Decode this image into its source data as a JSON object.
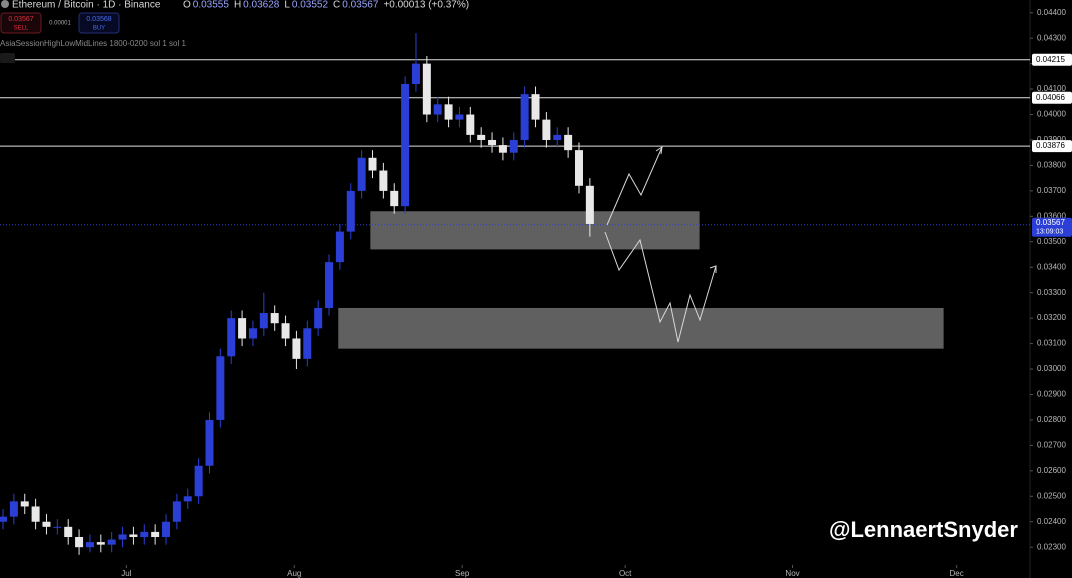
{
  "chart_data": {
    "type": "candlestick",
    "title": "Ethereum / Bitcoin · 1D · Binance",
    "readout": [
      {
        "label": "O",
        "value": "0.03555"
      },
      {
        "label": "H",
        "value": "0.03628"
      },
      {
        "label": "L",
        "value": "0.03552"
      },
      {
        "label": "C",
        "value": "0.03567"
      },
      {
        "label": "+0.00013 (+0.37%)"
      }
    ],
    "sell": {
      "price": "0.03567",
      "label": "SELL"
    },
    "spread": "0.00001",
    "buy": {
      "price": "0.03568",
      "label": "BUY"
    },
    "indicator": "AsiaSessionHighLowMidLines 1800-0200 sol 1 sol 1",
    "watermark": "@LennaertSnyder",
    "up_color": "#2b3fd6",
    "down_color": "#e8e8e8",
    "x": [
      0,
      2,
      4,
      6,
      8,
      10,
      12,
      14,
      16,
      18,
      20,
      22,
      24,
      26,
      28,
      30,
      32,
      34,
      36,
      38,
      40,
      42,
      44,
      46,
      48,
      50,
      52,
      54,
      56,
      58,
      60,
      62,
      64,
      66,
      68,
      70,
      72,
      74,
      76,
      78,
      80,
      82,
      84,
      86,
      88,
      90,
      92,
      94,
      96,
      98,
      100,
      102,
      104,
      106,
      108
    ],
    "open": [
      0.024,
      0.0242,
      0.0248,
      0.0246,
      0.024,
      0.0238,
      0.0238,
      0.0234,
      0.023,
      0.0232,
      0.0231,
      0.0233,
      0.0235,
      0.0234,
      0.0236,
      0.0234,
      0.024,
      0.0248,
      0.025,
      0.0262,
      0.028,
      0.0305,
      0.032,
      0.0312,
      0.0316,
      0.0322,
      0.0318,
      0.0312,
      0.0304,
      0.0316,
      0.0324,
      0.0342,
      0.0354,
      0.037,
      0.0383,
      0.0378,
      0.037,
      0.0364,
      0.0412,
      0.042,
      0.04,
      0.0404,
      0.0398,
      0.04,
      0.0392,
      0.039,
      0.0388,
      0.0385,
      0.039,
      0.0408,
      0.0398,
      0.039,
      0.0392,
      0.0386,
      0.0372
    ],
    "high": [
      0.0245,
      0.0251,
      0.0251,
      0.0249,
      0.0243,
      0.0241,
      0.0241,
      0.0237,
      0.0235,
      0.0235,
      0.0236,
      0.0238,
      0.0238,
      0.0239,
      0.0239,
      0.0243,
      0.0251,
      0.0253,
      0.0265,
      0.0283,
      0.0308,
      0.0323,
      0.0323,
      0.0319,
      0.033,
      0.0325,
      0.0321,
      0.0315,
      0.0319,
      0.0327,
      0.0345,
      0.0357,
      0.0373,
      0.0386,
      0.0386,
      0.0381,
      0.0373,
      0.0415,
      0.0432,
      0.0423,
      0.0407,
      0.0407,
      0.0403,
      0.0403,
      0.0395,
      0.0393,
      0.0391,
      0.0393,
      0.0411,
      0.0411,
      0.0401,
      0.0395,
      0.0395,
      0.0389,
      0.0375
    ],
    "low": [
      0.0237,
      0.0239,
      0.0243,
      0.0237,
      0.0235,
      0.0235,
      0.0231,
      0.0227,
      0.0228,
      0.0228,
      0.0228,
      0.023,
      0.0231,
      0.0231,
      0.0231,
      0.0231,
      0.0237,
      0.0245,
      0.0247,
      0.0259,
      0.0277,
      0.0302,
      0.0309,
      0.0309,
      0.0313,
      0.0315,
      0.0309,
      0.03,
      0.0301,
      0.0313,
      0.0321,
      0.0339,
      0.0351,
      0.0367,
      0.0375,
      0.0367,
      0.0361,
      0.0361,
      0.0409,
      0.0397,
      0.0397,
      0.0395,
      0.0395,
      0.0389,
      0.0387,
      0.0385,
      0.0382,
      0.0382,
      0.0387,
      0.0395,
      0.0387,
      0.0387,
      0.0383,
      0.0369,
      0.0352
    ],
    "close": [
      0.0242,
      0.0248,
      0.0246,
      0.024,
      0.0238,
      0.0238,
      0.0234,
      0.023,
      0.0232,
      0.0231,
      0.0233,
      0.0235,
      0.0234,
      0.0236,
      0.0234,
      0.024,
      0.0248,
      0.025,
      0.0262,
      0.028,
      0.0305,
      0.032,
      0.0312,
      0.0316,
      0.0322,
      0.0318,
      0.0312,
      0.0304,
      0.0316,
      0.0324,
      0.0342,
      0.0354,
      0.037,
      0.0383,
      0.0378,
      0.037,
      0.0364,
      0.0412,
      0.042,
      0.04,
      0.0404,
      0.0398,
      0.04,
      0.0392,
      0.039,
      0.0388,
      0.0385,
      0.039,
      0.0408,
      0.0398,
      0.039,
      0.0392,
      0.0386,
      0.0372,
      0.0357
    ],
    "xlim": [
      0,
      189
    ],
    "xticks": [
      {
        "value": 22.7,
        "label": "Jul"
      },
      {
        "value": 53.6,
        "label": "Aug"
      },
      {
        "value": 84.5,
        "label": "Sep"
      },
      {
        "value": 114.5,
        "label": "Oct"
      },
      {
        "value": 145.3,
        "label": "Nov"
      },
      {
        "value": 175.5,
        "label": "Dec"
      }
    ],
    "ylim": [
      0.0223,
      0.0445
    ],
    "yticks": [
      {
        "value": 0.023,
        "label": "0.02300"
      },
      {
        "value": 0.024,
        "label": "0.02400"
      },
      {
        "value": 0.025,
        "label": "0.02500"
      },
      {
        "value": 0.026,
        "label": "0.02600"
      },
      {
        "value": 0.027,
        "label": "0.02700"
      },
      {
        "value": 0.028,
        "label": "0.02800"
      },
      {
        "value": 0.029,
        "label": "0.02900"
      },
      {
        "value": 0.03,
        "label": "0.03000"
      },
      {
        "value": 0.031,
        "label": "0.03100"
      },
      {
        "value": 0.032,
        "label": "0.03200"
      },
      {
        "value": 0.033,
        "label": "0.03300"
      },
      {
        "value": 0.034,
        "label": "0.03400"
      },
      {
        "value": 0.035,
        "label": "0.03500"
      },
      {
        "value": 0.036,
        "label": "0.03600"
      },
      {
        "value": 0.037,
        "label": "0.03700"
      },
      {
        "value": 0.038,
        "label": "0.03800"
      },
      {
        "value": 0.039,
        "label": "0.03900"
      },
      {
        "value": 0.04,
        "label": "0.04000"
      },
      {
        "value": 0.041,
        "label": "0.04100"
      },
      {
        "value": 0.042,
        "label": "0.04200"
      },
      {
        "value": 0.043,
        "label": "0.04300"
      },
      {
        "value": 0.044,
        "label": "0.04400"
      }
    ],
    "levels": [
      0.04215,
      0.04066,
      0.03876
    ],
    "last_price": 0.03567,
    "countdown": "13:09:03",
    "zones": [
      {
        "top": 0.0362,
        "bottom": 0.0347,
        "start": 67.6,
        "end": 128.2
      },
      {
        "top": 0.0324,
        "bottom": 0.0308,
        "start": 61.7,
        "end": 173.1
      }
    ]
  }
}
